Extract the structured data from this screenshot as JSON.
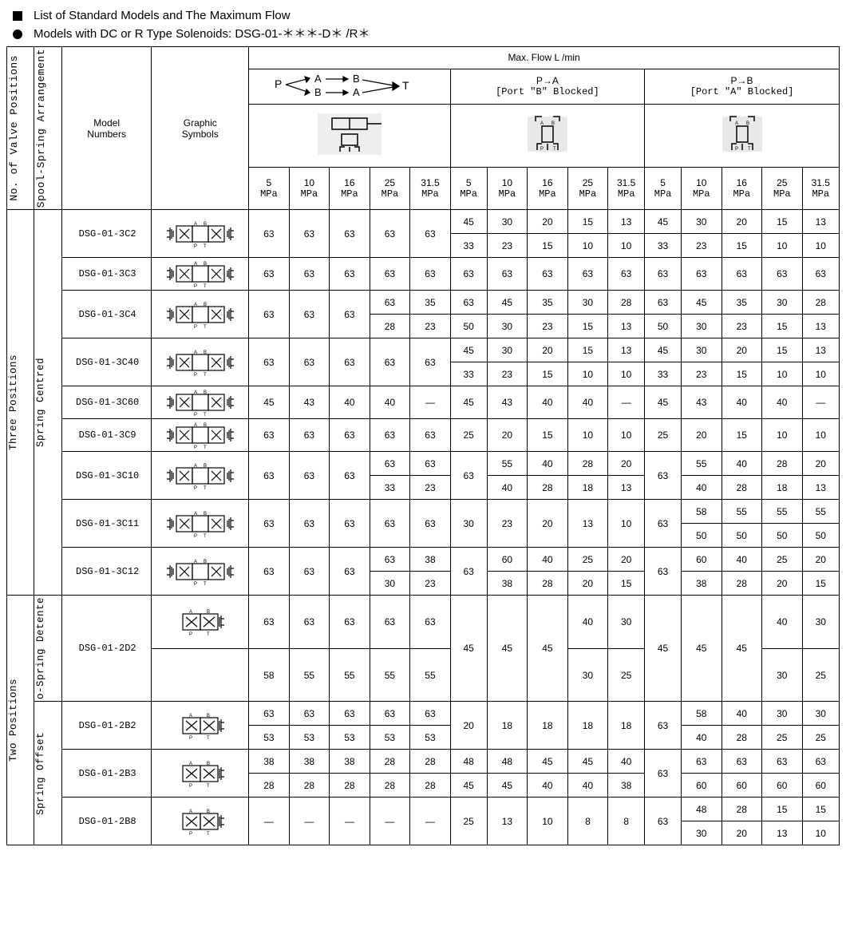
{
  "titles": {
    "l1": "List of Standard Models and The Maximum Flow",
    "l2": "Models with DC or R Type Solenoids: DSG-01-＊＊＊-D＊ /R＊"
  },
  "headers": {
    "npos": "No. of Valve Positions",
    "spool": "Spool-Spring Arrangement",
    "model": "Model\nNumbers",
    "graphic": "Graphic\nSymbols",
    "maxflow": "Max. Flow L /min",
    "pa": "P→A",
    "pa_sub": "[Port \"B\" Blocked]",
    "pb": "P→B",
    "pb_sub": "[Port \"A\" Blocked]",
    "pressures": [
      "5",
      "10",
      "16",
      "25",
      "31.5"
    ],
    "unit": "MPa"
  },
  "groups": {
    "three": "Three Positions",
    "two": "Two Positions",
    "sc": "Spring Centred",
    "nsd": "o-Spring Detente",
    "so": "Spring Offset"
  },
  "rows": [
    {
      "m": "DSG-01-3C2",
      "grp": "three",
      "arr": "sc",
      "split": true,
      "c1": [
        63,
        63,
        63,
        63,
        63
      ],
      "pa": [
        [
          45,
          30,
          20,
          15,
          13
        ],
        [
          33,
          23,
          15,
          10,
          10
        ]
      ],
      "pb": [
        [
          45,
          30,
          20,
          15,
          13
        ],
        [
          33,
          23,
          15,
          10,
          10
        ]
      ]
    },
    {
      "m": "DSG-01-3C3",
      "grp": "three",
      "arr": "sc",
      "split": false,
      "c1": [
        63,
        63,
        63,
        63,
        63
      ],
      "pa": [
        [
          63,
          63,
          63,
          63,
          63
        ]
      ],
      "pb": [
        [
          63,
          63,
          63,
          63,
          63
        ]
      ]
    },
    {
      "m": "DSG-01-3C4",
      "grp": "three",
      "arr": "sc",
      "split": true,
      "c1_split": true,
      "c1a": [
        63,
        63,
        63,
        63,
        35
      ],
      "c1b": [
        null,
        null,
        null,
        28,
        23
      ],
      "c1_span3": true,
      "pa": [
        [
          63,
          45,
          35,
          30,
          28
        ],
        [
          50,
          30,
          23,
          15,
          13
        ]
      ],
      "pb": [
        [
          63,
          45,
          35,
          30,
          28
        ],
        [
          50,
          30,
          23,
          15,
          13
        ]
      ]
    },
    {
      "m": "DSG-01-3C40",
      "grp": "three",
      "arr": "sc",
      "split": true,
      "c1": [
        63,
        63,
        63,
        63,
        63
      ],
      "pa": [
        [
          45,
          30,
          20,
          15,
          13
        ],
        [
          33,
          23,
          15,
          10,
          10
        ]
      ],
      "pb": [
        [
          45,
          30,
          20,
          15,
          13
        ],
        [
          33,
          23,
          15,
          10,
          10
        ]
      ]
    },
    {
      "m": "DSG-01-3C60",
      "grp": "three",
      "arr": "sc",
      "split": false,
      "c1": [
        45,
        43,
        40,
        40,
        "—"
      ],
      "pa": [
        [
          45,
          43,
          40,
          40,
          "—"
        ]
      ],
      "pb": [
        [
          45,
          43,
          40,
          40,
          "—"
        ]
      ]
    },
    {
      "m": "DSG-01-3C9",
      "grp": "three",
      "arr": "sc",
      "split": false,
      "c1": [
        63,
        63,
        63,
        63,
        63
      ],
      "pa": [
        [
          25,
          20,
          15,
          10,
          10
        ]
      ],
      "pb": [
        [
          25,
          20,
          15,
          10,
          10
        ]
      ]
    },
    {
      "m": "DSG-01-3C10",
      "grp": "three",
      "arr": "sc",
      "split": true,
      "c1_split": true,
      "c1a": [
        63,
        63,
        63,
        63,
        63
      ],
      "c1b": [
        null,
        null,
        null,
        33,
        23
      ],
      "c1_span3": true,
      "pa": [
        [
          63,
          55,
          40,
          28,
          20
        ],
        [
          null,
          40,
          28,
          18,
          13
        ]
      ],
      "pa_firstspan": true,
      "pb": [
        [
          63,
          55,
          40,
          28,
          20
        ],
        [
          null,
          40,
          28,
          18,
          13
        ]
      ],
      "pb_firstspan": true
    },
    {
      "m": "DSG-01-3C11",
      "grp": "three",
      "arr": "sc",
      "split": true,
      "c1": [
        63,
        63,
        63,
        63,
        63
      ],
      "pa": [
        [
          30,
          23,
          20,
          13,
          10
        ]
      ],
      "pa_single": true,
      "pb": [
        [
          63,
          58,
          55,
          55,
          55
        ],
        [
          null,
          50,
          50,
          50,
          50
        ]
      ],
      "pb_firstspan": true
    },
    {
      "m": "DSG-01-3C12",
      "grp": "three",
      "arr": "sc",
      "split": true,
      "c1_split": true,
      "c1a": [
        63,
        63,
        63,
        63,
        38
      ],
      "c1b": [
        null,
        null,
        null,
        30,
        23
      ],
      "c1_span3": true,
      "pa": [
        [
          63,
          60,
          40,
          25,
          20
        ],
        [
          null,
          38,
          28,
          20,
          15
        ]
      ],
      "pa_firstspan": true,
      "pb": [
        [
          63,
          60,
          40,
          25,
          20
        ],
        [
          null,
          38,
          28,
          20,
          15
        ]
      ],
      "pb_firstspan": true
    },
    {
      "m": "DSG-01-2D2",
      "grp": "two",
      "arr": "nsd",
      "split": true,
      "tall": true,
      "c1_split_rows": true,
      "c1a": [
        63,
        63,
        63,
        63,
        63
      ],
      "c1b": [
        58,
        55,
        55,
        55,
        55
      ],
      "pa": [
        [
          45,
          45,
          45,
          40,
          30
        ],
        [
          null,
          null,
          null,
          30,
          25
        ]
      ],
      "pa_span3": true,
      "pb": [
        [
          45,
          45,
          45,
          40,
          30
        ],
        [
          null,
          null,
          null,
          30,
          25
        ]
      ],
      "pb_span3": true
    },
    {
      "m": "DSG-01-2B2",
      "grp": "two",
      "arr": "so",
      "split": true,
      "c1_split_rows": true,
      "c1a": [
        63,
        63,
        63,
        63,
        63
      ],
      "c1b": [
        53,
        53,
        53,
        53,
        53
      ],
      "pa": [
        [
          20,
          18,
          18,
          18,
          18
        ]
      ],
      "pa_single": true,
      "pb": [
        [
          63,
          58,
          40,
          30,
          30
        ],
        [
          null,
          40,
          28,
          25,
          25
        ]
      ],
      "pb_firstspan": true
    },
    {
      "m": "DSG-01-2B3",
      "grp": "two",
      "arr": "so",
      "split": true,
      "c1_split_rows": true,
      "c1a": [
        38,
        38,
        38,
        28,
        28
      ],
      "c1b": [
        28,
        28,
        28,
        28,
        28
      ],
      "pa": [
        [
          48,
          48,
          45,
          45,
          40
        ],
        [
          45,
          45,
          40,
          40,
          38
        ]
      ],
      "pb": [
        [
          63,
          63,
          63,
          63,
          63
        ],
        [
          null,
          60,
          60,
          60,
          60
        ]
      ],
      "pb_firstspan": true
    },
    {
      "m": "DSG-01-2B8",
      "grp": "two",
      "arr": "so",
      "split": true,
      "c1": [
        "—",
        "—",
        "—",
        "—",
        "—"
      ],
      "pa": [
        [
          25,
          13,
          10,
          8,
          8
        ]
      ],
      "pa_single": true,
      "pb": [
        [
          63,
          48,
          28,
          15,
          15
        ],
        [
          null,
          30,
          20,
          13,
          10
        ]
      ],
      "pb_firstspan": true
    }
  ]
}
